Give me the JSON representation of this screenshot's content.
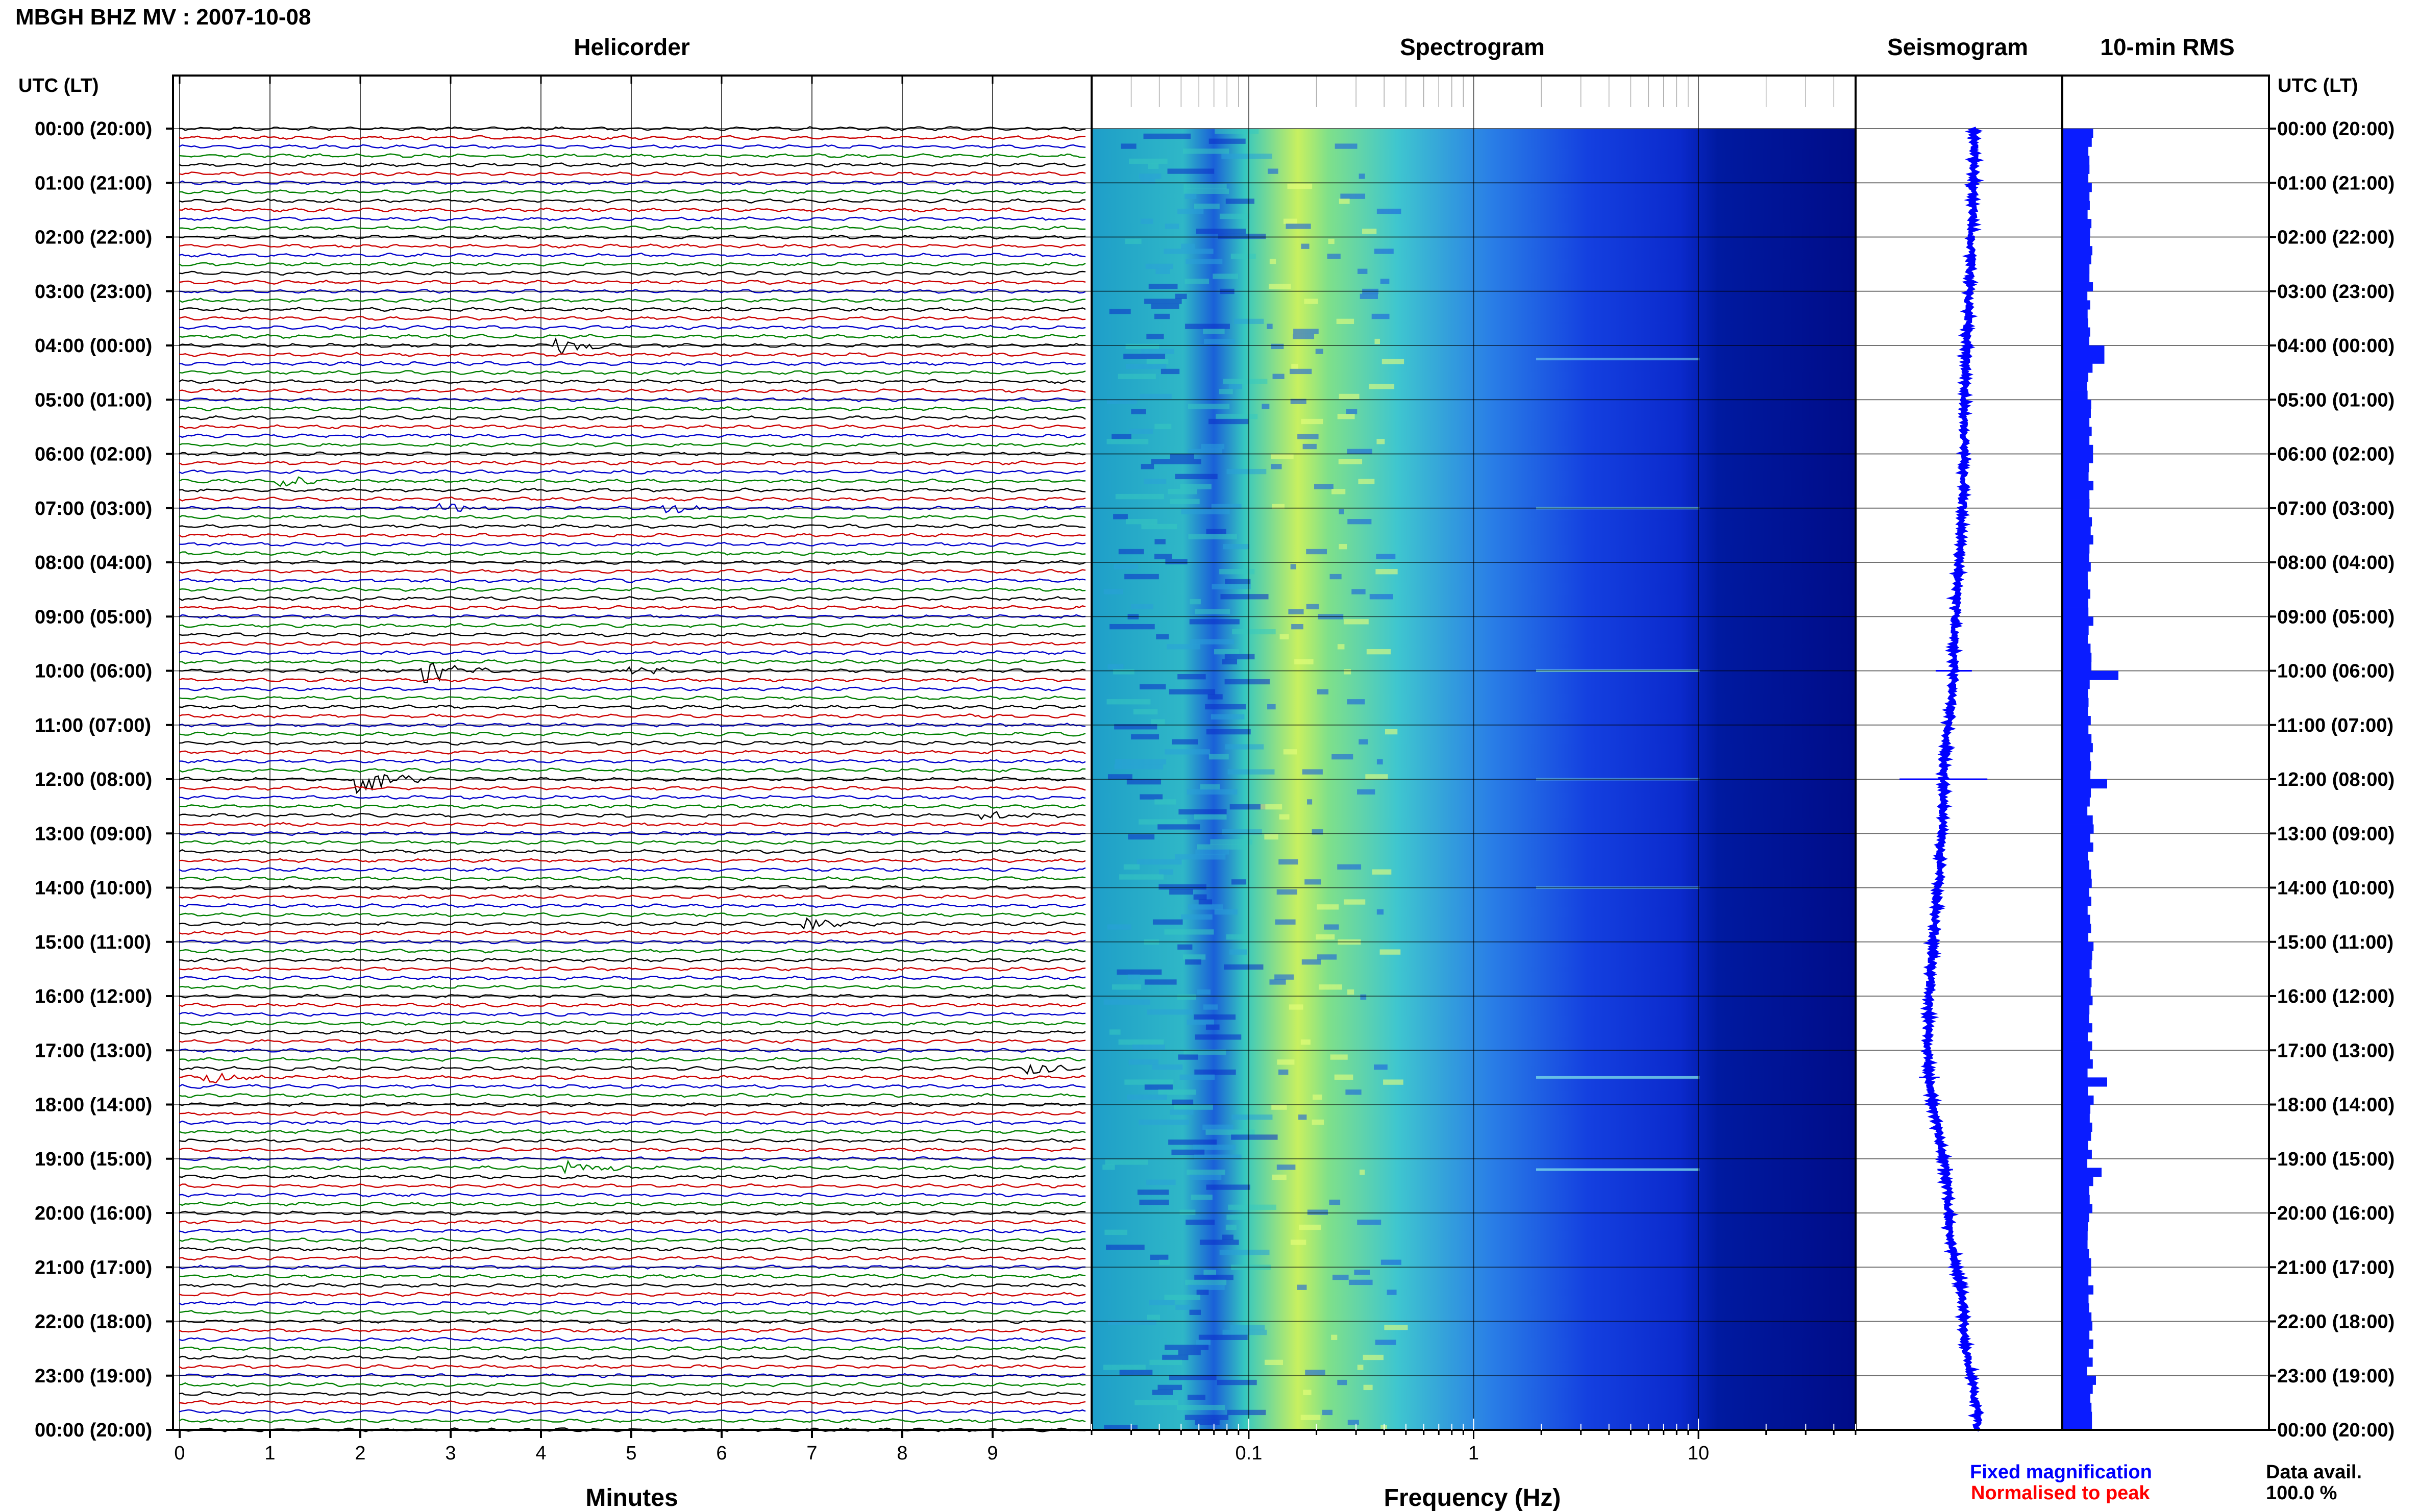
{
  "header": {
    "title": "MBGH BHZ MV : 2007-10-08"
  },
  "panels": {
    "helicorder": "Helicorder",
    "spectrogram": "Spectrogram",
    "seismogram": "Seismogram",
    "rms": "10-min RMS"
  },
  "axes": {
    "time_label_left": "UTC (LT)",
    "time_label_right": "UTC (LT)",
    "minutes_label": "Minutes",
    "frequency_label": "Frequency (Hz)"
  },
  "legend": {
    "fixed": "Fixed magnification",
    "normalised": "Normalised to peak",
    "data_avail_label": "Data avail.",
    "data_avail_value": "100.0 %"
  },
  "colors": {
    "trace_cycle": [
      "#000000",
      "#cc0000",
      "#0000cc",
      "#008000"
    ],
    "fixed": "#0000ff",
    "normalised": "#ff0000",
    "spectro_low": "#000080",
    "spectro_high": "#ffff66"
  },
  "chart_data": {
    "type": "heatmap",
    "title": "MBGH BHZ MV : 2007-10-08",
    "time_ticks": [
      "00:00 (20:00)",
      "01:00 (21:00)",
      "02:00 (22:00)",
      "03:00 (23:00)",
      "04:00 (00:00)",
      "05:00 (01:00)",
      "06:00 (02:00)",
      "07:00 (03:00)",
      "08:00 (04:00)",
      "09:00 (05:00)",
      "10:00 (06:00)",
      "11:00 (07:00)",
      "12:00 (08:00)",
      "13:00 (09:00)",
      "14:00 (10:00)",
      "15:00 (11:00)",
      "16:00 (12:00)",
      "17:00 (13:00)",
      "18:00 (14:00)",
      "19:00 (15:00)",
      "20:00 (16:00)",
      "21:00 (17:00)",
      "22:00 (18:00)",
      "23:00 (19:00)",
      "00:00 (20:00)"
    ],
    "helicorder": {
      "xlabel": "Minutes",
      "xlim": [
        0,
        10
      ],
      "x_ticks": [
        "0",
        "1",
        "2",
        "3",
        "4",
        "5",
        "6",
        "7",
        "8",
        "9"
      ],
      "lines_per_hour": 6,
      "events": [
        {
          "hour": 4.0,
          "minute": 4.3,
          "amplitude": 0.5
        },
        {
          "hour": 6.5,
          "minute": 1.2,
          "amplitude": 0.35
        },
        {
          "hour": 7.0,
          "minute": 3.0,
          "amplitude": 0.35
        },
        {
          "hour": 7.0,
          "minute": 5.5,
          "amplitude": 0.3
        },
        {
          "hour": 10.0,
          "minute": 2.8,
          "amplitude": 0.8
        },
        {
          "hour": 10.0,
          "minute": 5.0,
          "amplitude": 0.4
        },
        {
          "hour": 12.0,
          "minute": 2.1,
          "amplitude": 0.9
        },
        {
          "hour": 12.67,
          "minute": 9.0,
          "amplitude": 0.3
        },
        {
          "hour": 14.67,
          "minute": 7.0,
          "amplitude": 0.4
        },
        {
          "hour": 17.33,
          "minute": 9.5,
          "amplitude": 0.4
        },
        {
          "hour": 17.5,
          "minute": 0.4,
          "amplitude": 0.4
        },
        {
          "hour": 19.17,
          "minute": 4.4,
          "amplitude": 0.45
        }
      ]
    },
    "spectrogram": {
      "xlabel": "Frequency (Hz)",
      "xscale": "log",
      "xlim": [
        0.02,
        50
      ],
      "x_ticks": [
        "0.1",
        "1",
        "10"
      ],
      "peak_band_hz": [
        0.15,
        0.5
      ]
    },
    "seismogram": {
      "xlim": [
        -1,
        1
      ],
      "drift": [
        {
          "hour": 0,
          "value": 0.15
        },
        {
          "hour": 6,
          "value": 0.05
        },
        {
          "hour": 10,
          "value": -0.05
        },
        {
          "hour": 12,
          "value": -0.15
        },
        {
          "hour": 17,
          "value": -0.3
        },
        {
          "hour": 20,
          "value": -0.1
        },
        {
          "hour": 22,
          "value": 0.05
        },
        {
          "hour": 24,
          "value": 0.18
        }
      ],
      "spikes": [
        {
          "hour": 10.0,
          "size": 0.35
        },
        {
          "hour": 12.0,
          "size": 0.85
        },
        {
          "hour": 17.5,
          "size": 0.2
        },
        {
          "hour": 19.2,
          "size": 0.15
        }
      ]
    },
    "rms": {
      "type": "bar",
      "interval_minutes": 10,
      "baseline": 0.5,
      "peaks": [
        {
          "hour": 4.1,
          "value": 0.75
        },
        {
          "hour": 10.0,
          "value": 1.0
        },
        {
          "hour": 12.0,
          "value": 0.8
        },
        {
          "hour": 17.5,
          "value": 0.8
        },
        {
          "hour": 19.2,
          "value": 0.7
        },
        {
          "hour": 0.0,
          "value": 0.55
        },
        {
          "hour": 23.0,
          "value": 0.6
        }
      ]
    }
  }
}
